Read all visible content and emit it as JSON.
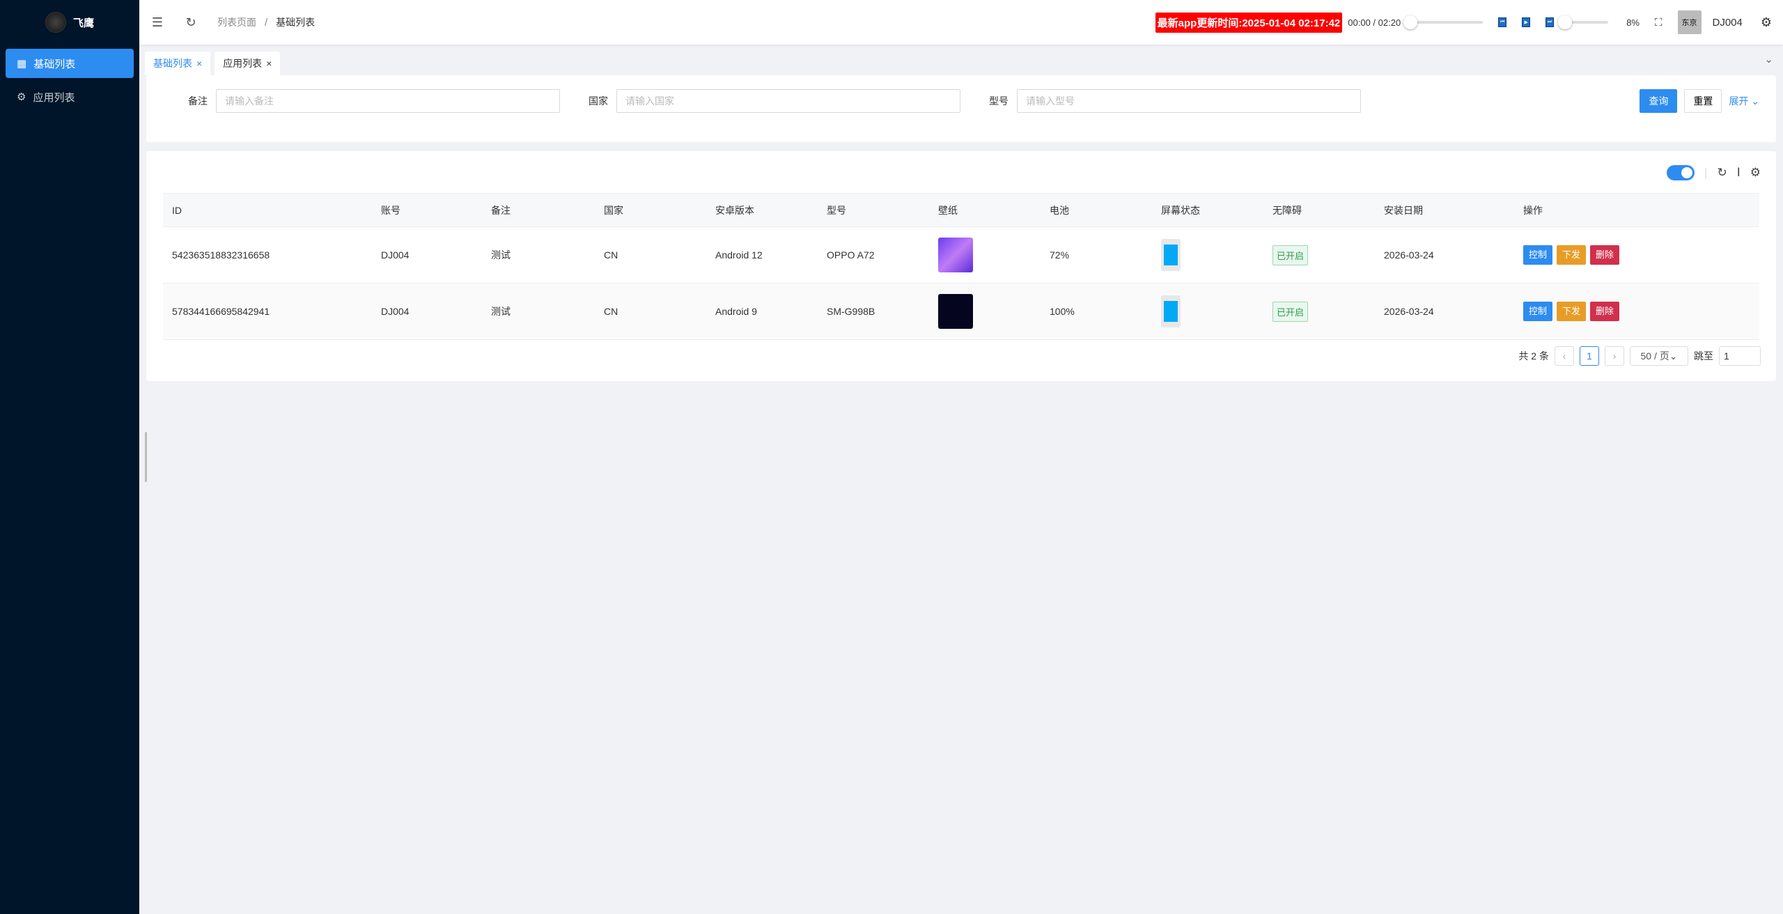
{
  "sidebar": {
    "title": "飞鹰",
    "items": [
      {
        "label": "基础列表",
        "icon": "grid-icon"
      },
      {
        "label": "应用列表",
        "icon": "gear-icon"
      }
    ]
  },
  "header": {
    "breadcrumb": [
      "列表页面",
      "基础列表"
    ],
    "update_badge": "最新app更新时间:2025-01-04 02:17:42",
    "time": "00:00 / 02:20",
    "volume": "8%",
    "username": "DJ004",
    "avatar_text": "东京"
  },
  "tabs": [
    {
      "label": "基础列表"
    },
    {
      "label": "应用列表"
    }
  ],
  "search": {
    "fields": [
      {
        "label": "备注",
        "placeholder": "请输入备注"
      },
      {
        "label": "国家",
        "placeholder": "请输入国家"
      },
      {
        "label": "型号",
        "placeholder": "请输入型号"
      }
    ],
    "query": "查询",
    "reset": "重置",
    "expand": "展开"
  },
  "table": {
    "columns": [
      "ID",
      "账号",
      "备注",
      "国家",
      "安卓版本",
      "型号",
      "壁纸",
      "电池",
      "屏幕状态",
      "无障碍",
      "安装日期",
      "操作"
    ],
    "rows": [
      {
        "id": "542363518832316658",
        "account": "DJ004",
        "note": "测试",
        "country": "CN",
        "android": "Android 12",
        "model": "OPPO A72",
        "battery": "72%",
        "accessibility": "已开启",
        "date": "2026-03-24"
      },
      {
        "id": "578344166695842941",
        "account": "DJ004",
        "note": "测试",
        "country": "CN",
        "android": "Android 9",
        "model": "SM-G998B",
        "battery": "100%",
        "accessibility": "已开启",
        "date": "2026-03-24"
      }
    ],
    "actions": {
      "control": "控制",
      "send": "下发",
      "delete": "删除"
    }
  },
  "pagination": {
    "total": "共 2 条",
    "current": "1",
    "page_size": "50 / 页",
    "goto": "跳至",
    "goto_value": "1"
  },
  "colors": {
    "primary": "#2d8cf0",
    "sidebar": "#001529",
    "warning": "#e89c27",
    "danger": "#d0304c",
    "badge": "#ff0000"
  }
}
